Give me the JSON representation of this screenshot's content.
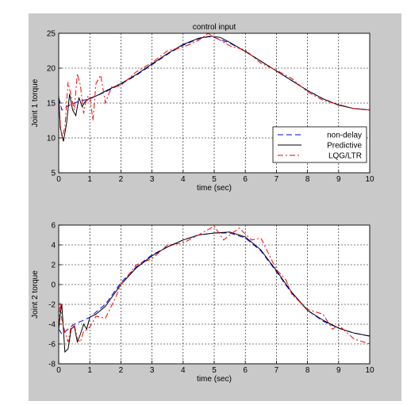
{
  "figure": {
    "background": "#c9c9c9"
  },
  "chart_data": [
    {
      "type": "line",
      "title": "control input",
      "xlabel": "time (sec)",
      "ylabel": "Joint 1 torque",
      "xlim": [
        0,
        10
      ],
      "ylim": [
        5,
        25
      ],
      "xticks": [
        "0",
        "1",
        "2",
        "3",
        "4",
        "5",
        "6",
        "7",
        "8",
        "9",
        "10"
      ],
      "yticks": [
        "5",
        "10",
        "15",
        "20",
        "25"
      ],
      "grid": true,
      "legend": {
        "position": "lower-right"
      },
      "series": [
        {
          "name": "non-delay",
          "color": "#0000ff",
          "dash": "dashed",
          "x": [
            0,
            0.1,
            0.3,
            0.5,
            0.7,
            1,
            1.5,
            2,
            2.5,
            3,
            3.5,
            4,
            4.5,
            4.8,
            5,
            5.5,
            6,
            6.5,
            7,
            7.5,
            8,
            8.5,
            9,
            9.5,
            10
          ],
          "y": [
            15.8,
            14.0,
            14.6,
            15.0,
            15.3,
            15.6,
            16.6,
            17.7,
            19.0,
            20.5,
            22.0,
            23.3,
            24.2,
            24.5,
            24.4,
            23.6,
            22.4,
            21.0,
            19.6,
            18.2,
            16.8,
            15.6,
            14.7,
            14.2,
            14.0
          ]
        },
        {
          "name": "Predictive",
          "color": "#000000",
          "dash": "solid",
          "x": [
            0,
            0.05,
            0.15,
            0.25,
            0.35,
            0.45,
            0.55,
            0.65,
            0.75,
            0.85,
            1,
            1.2,
            1.5,
            2,
            2.5,
            3,
            3.5,
            4,
            4.5,
            4.9,
            5.2,
            5.5,
            6,
            6.5,
            7,
            7.5,
            8,
            8.5,
            9,
            9.5,
            10
          ],
          "y": [
            16.0,
            11.5,
            9.5,
            12.0,
            16.3,
            14.0,
            13.2,
            15.8,
            14.5,
            15.2,
            15.7,
            16.0,
            16.7,
            17.8,
            19.1,
            20.6,
            22.1,
            23.4,
            24.3,
            24.6,
            24.4,
            23.7,
            22.4,
            21.0,
            19.6,
            18.2,
            16.8,
            15.6,
            14.7,
            14.2,
            14.0
          ]
        },
        {
          "name": "LQG/LTR",
          "color": "#ff0000",
          "dash": "dashdot",
          "x": [
            0,
            0.1,
            0.2,
            0.3,
            0.4,
            0.5,
            0.6,
            0.7,
            0.8,
            0.9,
            1,
            1.1,
            1.2,
            1.35,
            1.5,
            1.7,
            2,
            2.5,
            3,
            3.5,
            4,
            4.5,
            4.8,
            5.2,
            5.5,
            6,
            6.5,
            7,
            7.5,
            8,
            8.5,
            9,
            9.5,
            10
          ],
          "y": [
            14.5,
            10.0,
            11.5,
            18.0,
            16.0,
            14.0,
            19.2,
            17.5,
            13.5,
            15.8,
            16.0,
            12.5,
            17.8,
            19.0,
            15.0,
            17.3,
            17.5,
            19.5,
            20.8,
            22.5,
            23.0,
            24.0,
            25.0,
            24.0,
            23.2,
            22.6,
            20.7,
            19.7,
            18.5,
            16.6,
            15.4,
            14.8,
            14.2,
            14.0
          ]
        }
      ]
    },
    {
      "type": "line",
      "title": "",
      "xlabel": "time (sec)",
      "ylabel": "Joint 2 torque",
      "xlim": [
        0,
        10
      ],
      "ylim": [
        -8,
        6
      ],
      "xticks": [
        "0",
        "1",
        "2",
        "3",
        "4",
        "5",
        "6",
        "7",
        "8",
        "9",
        "10"
      ],
      "yticks": [
        "-8",
        "-6",
        "-4",
        "-2",
        "0",
        "2",
        "4",
        "6"
      ],
      "grid": true,
      "series": [
        {
          "name": "non-delay",
          "color": "#0000ff",
          "dash": "dashed",
          "x": [
            0,
            0.1,
            0.3,
            0.5,
            0.8,
            1,
            1.5,
            2,
            2.5,
            3,
            3.5,
            4,
            4.5,
            5,
            5.5,
            6,
            6.5,
            7,
            7.5,
            8,
            8.5,
            9,
            9.5,
            10
          ],
          "y": [
            -4.5,
            -5.0,
            -4.5,
            -4.0,
            -3.6,
            -3.3,
            -2.0,
            0.2,
            1.8,
            3.0,
            3.8,
            4.5,
            5.0,
            5.2,
            5.2,
            4.7,
            3.4,
            1.3,
            -0.9,
            -2.6,
            -3.7,
            -4.4,
            -4.9,
            -5.2
          ]
        },
        {
          "name": "Predictive",
          "color": "#000000",
          "dash": "solid",
          "x": [
            0,
            0.05,
            0.1,
            0.2,
            0.3,
            0.4,
            0.5,
            0.6,
            0.7,
            0.8,
            0.9,
            1,
            1.2,
            1.5,
            2,
            2.5,
            3,
            3.5,
            4,
            4.5,
            5,
            5.5,
            6,
            6.5,
            7,
            7.5,
            8,
            8.5,
            9,
            9.5,
            10
          ],
          "y": [
            -4.5,
            -3.0,
            -2.0,
            -6.8,
            -6.5,
            -4.5,
            -4.2,
            -5.8,
            -5.0,
            -4.0,
            -4.5,
            -3.3,
            -3.0,
            -2.2,
            0.0,
            1.7,
            2.9,
            3.8,
            4.5,
            5.0,
            5.2,
            5.3,
            4.8,
            3.5,
            1.4,
            -0.8,
            -2.6,
            -3.6,
            -4.4,
            -4.9,
            -5.2
          ]
        },
        {
          "name": "LQG/LTR",
          "color": "#ff0000",
          "dash": "dashdot",
          "x": [
            0,
            0.05,
            0.1,
            0.2,
            0.3,
            0.4,
            0.5,
            0.6,
            0.7,
            0.8,
            0.9,
            1,
            1.2,
            1.5,
            1.8,
            2,
            2.5,
            3,
            3.5,
            4,
            4.5,
            5,
            5.3,
            5.5,
            5.8,
            6.2,
            6.5,
            7,
            7.3,
            7.5,
            8,
            8.5,
            8.8,
            9,
            9.5,
            10
          ],
          "y": [
            -4.0,
            -1.8,
            -3.5,
            -4.8,
            -5.8,
            -4.2,
            -4.0,
            -5.5,
            -5.8,
            -4.7,
            -4.6,
            -4.3,
            -3.2,
            -3.4,
            -1.5,
            0.0,
            2.0,
            2.6,
            4.0,
            4.2,
            5.0,
            5.9,
            4.5,
            5.0,
            5.7,
            4.5,
            4.7,
            1.5,
            0.5,
            -1.0,
            -2.5,
            -3.0,
            -4.5,
            -4.1,
            -5.5,
            -6.0
          ]
        }
      ]
    }
  ]
}
